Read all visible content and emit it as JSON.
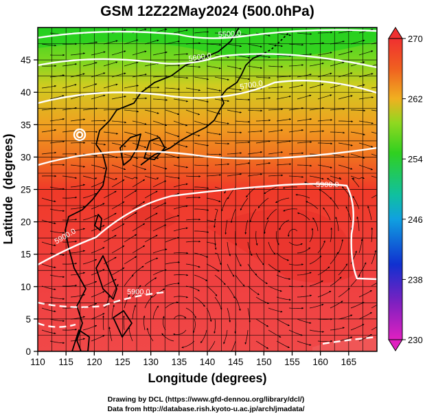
{
  "title": "GSM 12Z22May2024 (500.0hPa)",
  "x_axis": {
    "label": "Longitude (degrees)",
    "ticks": [
      "110",
      "115",
      "120",
      "125",
      "130",
      "135",
      "140",
      "145",
      "150",
      "155",
      "160",
      "165"
    ],
    "range": [
      110,
      170
    ]
  },
  "y_axis": {
    "label": "Latitude  (degrees)",
    "ticks": [
      "0",
      "5",
      "10",
      "15",
      "20",
      "25",
      "30",
      "35",
      "40",
      "45"
    ],
    "range": [
      0,
      50
    ]
  },
  "colorbar": {
    "ticks": [
      "230",
      "238",
      "246",
      "254",
      "262",
      "270"
    ],
    "range": [
      230,
      270
    ],
    "colors": [
      "#e020c0",
      "#6020c0",
      "#1030d0",
      "#10a0e0",
      "#10c0a0",
      "#30d020",
      "#80d820",
      "#d0d020",
      "#f0a020",
      "#f06020",
      "#f03030"
    ]
  },
  "contour_labels": [
    "5500.0",
    "5600.0",
    "5700.0",
    "5900.0",
    "5900.0",
    "5900.0"
  ],
  "credits": {
    "line1": "Drawing by DCL (https://www.gfd-dennou.org/library/dcl/)",
    "line2": "Data from http://database.rish.kyoto-u.ac.jp/arch/jmadata/"
  }
}
